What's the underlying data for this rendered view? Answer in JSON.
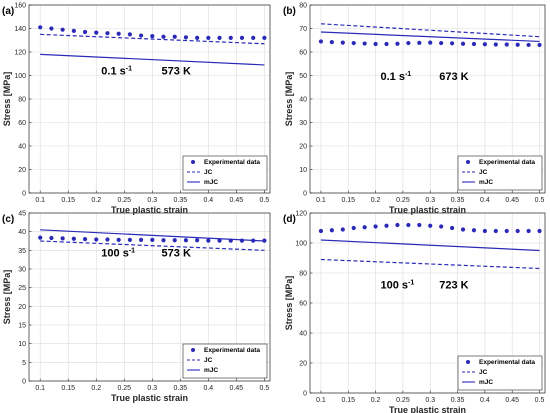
{
  "colors": {
    "series": "#2a2ab8",
    "grid": "#dcdcdc",
    "axis": "#262626"
  },
  "legend": {
    "placement": "bottom-right",
    "entries": [
      "Experimental data",
      "JC",
      "mJC"
    ]
  },
  "chart_data": [
    {
      "panel_label": "(a)",
      "type": "line",
      "xlabel": "True plastic strain",
      "ylabel": "Stress [MPa]",
      "xlim": [
        0.08,
        0.51
      ],
      "ylim": [
        0,
        160
      ],
      "xticks": [
        "0.1",
        "0.15",
        "0.2",
        "0.25",
        "0.3",
        "0.35",
        "0.4",
        "0.45",
        "0.5"
      ],
      "yticks": [
        "0",
        "20",
        "40",
        "60",
        "80",
        "100",
        "120",
        "140",
        "160"
      ],
      "grid": true,
      "annotation": {
        "rate": "0.1 s",
        "rate_exp": "-1",
        "temperature": "573 K"
      },
      "series": [
        {
          "name": "Experimental data",
          "style": "markers",
          "x": [
            0.1,
            0.12,
            0.14,
            0.16,
            0.18,
            0.2,
            0.22,
            0.24,
            0.26,
            0.28,
            0.3,
            0.32,
            0.34,
            0.36,
            0.38,
            0.4,
            0.42,
            0.44,
            0.46,
            0.48,
            0.5
          ],
          "y": [
            141,
            140,
            139,
            138,
            137,
            136.5,
            136,
            135.5,
            135,
            134,
            133.5,
            133,
            133,
            132.5,
            132,
            132,
            132,
            132,
            132,
            132,
            132
          ]
        },
        {
          "name": "JC",
          "style": "dashed",
          "x": [
            0.1,
            0.5
          ],
          "y": [
            135,
            127
          ]
        },
        {
          "name": "mJC",
          "style": "solid",
          "x": [
            0.1,
            0.5
          ],
          "y": [
            118,
            109
          ]
        }
      ]
    },
    {
      "panel_label": "(b)",
      "type": "line",
      "xlabel": "True plastic strain",
      "ylabel": "Stress [MPa]",
      "xlim": [
        0.08,
        0.51
      ],
      "ylim": [
        0,
        80
      ],
      "xticks": [
        "0.1",
        "0.15",
        "0.2",
        "0.25",
        "0.3",
        "0.35",
        "0.4",
        "0.45",
        "0.5"
      ],
      "yticks": [
        "0",
        "10",
        "20",
        "30",
        "40",
        "50",
        "60",
        "70",
        "80"
      ],
      "grid": true,
      "annotation": {
        "rate": "0.1 s",
        "rate_exp": "-1",
        "temperature": "673 K"
      },
      "series": [
        {
          "name": "Experimental data",
          "style": "markers",
          "x": [
            0.1,
            0.12,
            0.14,
            0.16,
            0.18,
            0.2,
            0.22,
            0.24,
            0.26,
            0.28,
            0.3,
            0.32,
            0.34,
            0.36,
            0.38,
            0.4,
            0.42,
            0.44,
            0.46,
            0.48,
            0.5
          ],
          "y": [
            64.5,
            64.2,
            64,
            63.8,
            63.6,
            63.4,
            63.4,
            63.5,
            63.8,
            63.9,
            64,
            63.8,
            63.7,
            63.5,
            63.4,
            63.3,
            63.2,
            63.2,
            63.1,
            63,
            63
          ]
        },
        {
          "name": "JC",
          "style": "dashed",
          "x": [
            0.1,
            0.5
          ],
          "y": [
            72,
            66.5
          ]
        },
        {
          "name": "mJC",
          "style": "solid",
          "x": [
            0.1,
            0.5
          ],
          "y": [
            68.5,
            64.5
          ]
        }
      ]
    },
    {
      "panel_label": "(c)",
      "type": "line",
      "xlabel": "True plastic strain",
      "ylabel": "Stress [MPa]",
      "xlim": [
        0.08,
        0.51
      ],
      "ylim": [
        0,
        45
      ],
      "xticks": [
        "0.1",
        "0.15",
        "0.2",
        "0.25",
        "0.3",
        "0.35",
        "0.4",
        "0.45",
        "0.5"
      ],
      "yticks": [
        "0",
        "5",
        "10",
        "15",
        "20",
        "25",
        "30",
        "35",
        "40",
        "45"
      ],
      "grid": true,
      "annotation": {
        "rate": "100 s",
        "rate_exp": "-1",
        "temperature": "573 K"
      },
      "series": [
        {
          "name": "Experimental data",
          "style": "markers",
          "x": [
            0.1,
            0.12,
            0.14,
            0.16,
            0.18,
            0.2,
            0.22,
            0.24,
            0.26,
            0.28,
            0.3,
            0.32,
            0.34,
            0.36,
            0.38,
            0.4,
            0.42,
            0.44,
            0.46,
            0.48,
            0.5
          ],
          "y": [
            38.4,
            38.3,
            38.2,
            38.1,
            38,
            37.9,
            37.9,
            37.8,
            37.8,
            37.8,
            37.8,
            37.7,
            37.7,
            37.7,
            37.7,
            37.6,
            37.6,
            37.6,
            37.6,
            37.6,
            37.6
          ]
        },
        {
          "name": "JC",
          "style": "dashed",
          "x": [
            0.1,
            0.5
          ],
          "y": [
            37.5,
            35
          ]
        },
        {
          "name": "mJC",
          "style": "solid",
          "x": [
            0.1,
            0.5
          ],
          "y": [
            40.5,
            37.5
          ]
        }
      ]
    },
    {
      "panel_label": "(d)",
      "type": "line",
      "xlabel": "True plastic strain",
      "ylabel": "Stress [MPa]",
      "xlim": [
        0.08,
        0.51
      ],
      "ylim": [
        0,
        120
      ],
      "xticks": [
        "0.1",
        "0.15",
        "0.2",
        "0.25",
        "0.3",
        "0.35",
        "0.4",
        "0.45",
        "0.5"
      ],
      "yticks": [
        "0",
        "20",
        "40",
        "60",
        "80",
        "100",
        "120"
      ],
      "grid": true,
      "annotation": {
        "rate": "100 s",
        "rate_exp": "-1",
        "temperature": "723 K"
      },
      "series": [
        {
          "name": "Experimental data",
          "style": "markers",
          "x": [
            0.1,
            0.12,
            0.14,
            0.16,
            0.18,
            0.2,
            0.22,
            0.24,
            0.26,
            0.28,
            0.3,
            0.32,
            0.34,
            0.36,
            0.38,
            0.4,
            0.42,
            0.44,
            0.46,
            0.48,
            0.5
          ],
          "y": [
            108,
            108.5,
            109,
            110,
            110.5,
            111,
            111.5,
            112,
            112,
            112,
            111.5,
            111,
            110,
            109,
            108.5,
            108,
            108,
            108,
            108,
            108,
            108
          ]
        },
        {
          "name": "JC",
          "style": "dashed",
          "x": [
            0.1,
            0.5
          ],
          "y": [
            89,
            83
          ]
        },
        {
          "name": "mJC",
          "style": "solid",
          "x": [
            0.1,
            0.5
          ],
          "y": [
            102,
            95
          ]
        }
      ]
    }
  ]
}
